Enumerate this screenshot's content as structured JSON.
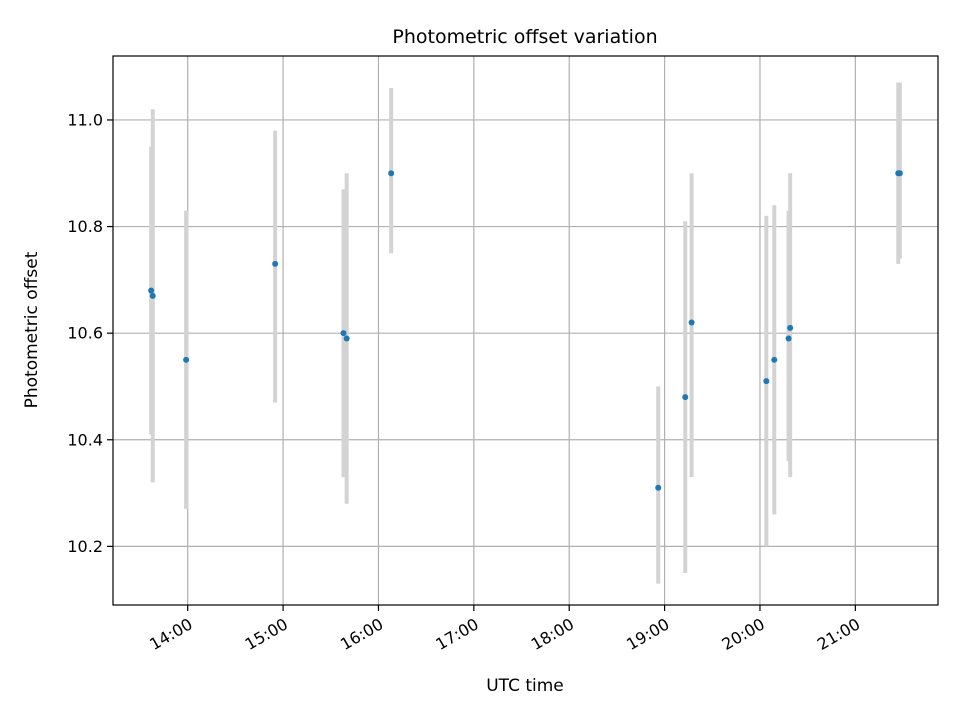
{
  "chart_data": {
    "type": "scatter",
    "title": "Photometric offset variation",
    "xlabel": "UTC time",
    "ylabel": "Photometric offset",
    "x_axis": {
      "kind": "time",
      "range": [
        "13:13",
        "21:52"
      ],
      "ticks": [
        "14:00",
        "15:00",
        "16:00",
        "17:00",
        "18:00",
        "19:00",
        "20:00",
        "21:00"
      ],
      "tick_rotation_deg": 30
    },
    "y_axis": {
      "range": [
        10.09,
        11.12
      ],
      "ticks": [
        10.2,
        10.4,
        10.6,
        10.8,
        11.0
      ],
      "tick_labels": [
        "10.2",
        "10.4",
        "10.6",
        "10.8",
        "11.0"
      ]
    },
    "grid": true,
    "legend": "none",
    "colors": {
      "point": "#1f77b4",
      "errorbar": "#d3d3d3",
      "grid": "#b0b0b0",
      "axes": "#000000"
    },
    "series": [
      {
        "points": [
          {
            "x": "13:37",
            "y": 10.68,
            "ylo": 10.41,
            "yhi": 10.95
          },
          {
            "x": "13:38",
            "y": 10.67,
            "ylo": 10.32,
            "yhi": 11.02
          },
          {
            "x": "13:59",
            "y": 10.55,
            "ylo": 10.27,
            "yhi": 10.83
          },
          {
            "x": "14:55",
            "y": 10.73,
            "ylo": 10.47,
            "yhi": 10.98
          },
          {
            "x": "15:38",
            "y": 10.6,
            "ylo": 10.33,
            "yhi": 10.87
          },
          {
            "x": "15:40",
            "y": 10.59,
            "ylo": 10.28,
            "yhi": 10.9
          },
          {
            "x": "16:08",
            "y": 10.9,
            "ylo": 10.75,
            "yhi": 11.06
          },
          {
            "x": "18:56",
            "y": 10.31,
            "ylo": 10.13,
            "yhi": 10.5
          },
          {
            "x": "19:13",
            "y": 10.48,
            "ylo": 10.15,
            "yhi": 10.81
          },
          {
            "x": "19:17",
            "y": 10.62,
            "ylo": 10.33,
            "yhi": 10.9
          },
          {
            "x": "20:04",
            "y": 10.51,
            "ylo": 10.2,
            "yhi": 10.82
          },
          {
            "x": "20:09",
            "y": 10.55,
            "ylo": 10.26,
            "yhi": 10.84
          },
          {
            "x": "20:18",
            "y": 10.59,
            "ylo": 10.36,
            "yhi": 10.83
          },
          {
            "x": "20:19",
            "y": 10.61,
            "ylo": 10.33,
            "yhi": 10.9
          },
          {
            "x": "21:27",
            "y": 10.9,
            "ylo": 10.73,
            "yhi": 11.07
          },
          {
            "x": "21:28",
            "y": 10.9,
            "ylo": 10.74,
            "yhi": 11.07
          }
        ]
      }
    ]
  }
}
